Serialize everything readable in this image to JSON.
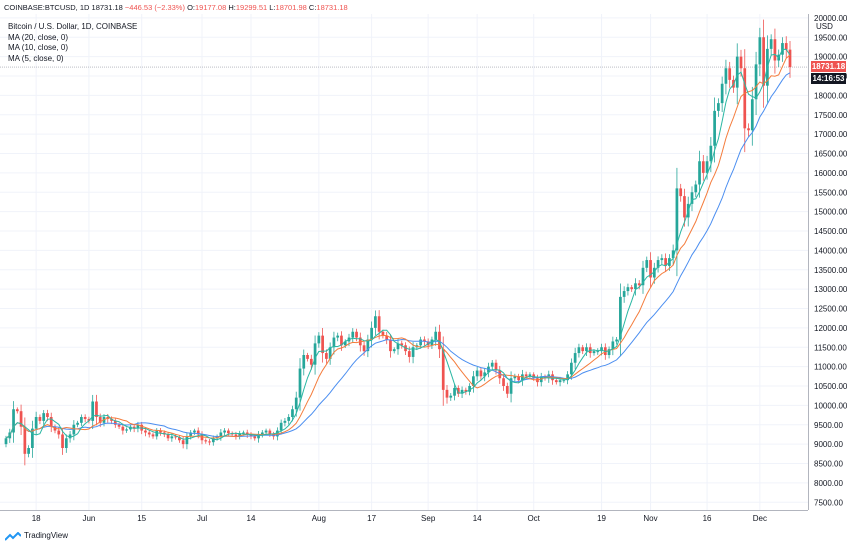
{
  "header": {
    "symbol": "COINBASE:BTCUSD, 1D",
    "price": "18731.18",
    "change": "−446.53 (−2.33%)",
    "o_label": "O:",
    "o_value": "19177.08",
    "h_label": "H:",
    "h_value": "19299.51",
    "l_label": "L:",
    "l_value": "18701.98",
    "c_label": "C:",
    "c_value": "18731.18"
  },
  "legend": {
    "title": "Bitcoin / U.S. Dollar, 1D, COINBASE",
    "ma20": "MA (20, close, 0)",
    "ma10": "MA (10, close, 0)",
    "ma5": "MA (5, close, 0)"
  },
  "tags": {
    "last_price": "18731.18",
    "countdown": "14:16:53"
  },
  "axis": {
    "currency": "USD",
    "top_partial": "20000.00"
  },
  "footer": {
    "brand": "TradingView"
  },
  "colors": {
    "up": "#26a69a",
    "down": "#ef5350",
    "ma20": "#4b8ef0",
    "ma10": "#f47c3c",
    "ma5": "#2ab7a3"
  },
  "chart_data": {
    "type": "candlestick",
    "ylim": [
      7300,
      20100
    ],
    "y_ticks": [
      7500,
      8000,
      8500,
      9000,
      9500,
      10000,
      10500,
      11000,
      11500,
      12000,
      12500,
      13000,
      13500,
      14000,
      14500,
      15000,
      15500,
      16000,
      16500,
      17000,
      17500,
      18000,
      18500,
      19000,
      19500,
      20000
    ],
    "x_ticks": [
      {
        "label": "18",
        "index": 8
      },
      {
        "label": "Jun",
        "index": 22
      },
      {
        "label": "15",
        "index": 36
      },
      {
        "label": "Jul",
        "index": 52
      },
      {
        "label": "14",
        "index": 65
      },
      {
        "label": "Aug",
        "index": 83
      },
      {
        "label": "17",
        "index": 97
      },
      {
        "label": "Sep",
        "index": 112
      },
      {
        "label": "14",
        "index": 125
      },
      {
        "label": "Oct",
        "index": 140
      },
      {
        "label": "19",
        "index": 158
      },
      {
        "label": "Nov",
        "index": 171
      },
      {
        "label": "16",
        "index": 186
      },
      {
        "label": "Dec",
        "index": 200
      }
    ],
    "close": [
      9150,
      9300,
      9900,
      9850,
      9450,
      8750,
      8900,
      9400,
      9700,
      9600,
      9800,
      9700,
      9450,
      9350,
      9250,
      8900,
      9150,
      9250,
      9500,
      9550,
      9700,
      9650,
      9600,
      10100,
      9700,
      9550,
      9700,
      9650,
      9600,
      9500,
      9450,
      9350,
      9380,
      9450,
      9400,
      9500,
      9350,
      9300,
      9250,
      9200,
      9350,
      9300,
      9250,
      9150,
      9200,
      9180,
      9100,
      9000,
      9200,
      9300,
      9350,
      9250,
      9100,
      9070,
      9050,
      9150,
      9200,
      9300,
      9350,
      9280,
      9250,
      9200,
      9280,
      9300,
      9250,
      9200,
      9150,
      9250,
      9300,
      9350,
      9250,
      9200,
      9350,
      9550,
      9600,
      9700,
      9900,
      10200,
      10950,
      11300,
      11200,
      11050,
      11600,
      11800,
      11350,
      11200,
      11500,
      11750,
      11800,
      11550,
      11650,
      11750,
      11900,
      11750,
      11550,
      11400,
      11700,
      12000,
      12300,
      11900,
      11800,
      11700,
      11400,
      11450,
      11600,
      11550,
      11400,
      11250,
      11500,
      11550,
      11700,
      11650,
      11550,
      11700,
      11900,
      11450,
      10400,
      10200,
      10250,
      10450,
      10300,
      10400,
      10350,
      10500,
      10750,
      10900,
      10750,
      10850,
      11000,
      11100,
      10900,
      10700,
      10500,
      10300,
      10700,
      10750,
      10650,
      10800,
      10750,
      10800,
      10700,
      10600,
      10750,
      10700,
      10800,
      10650,
      10600,
      10650,
      10650,
      10800,
      11100,
      11350,
      11500,
      11400,
      11500,
      11350,
      11400,
      11400,
      11500,
      11300,
      11450,
      11650,
      11700,
      12800,
      12950,
      13050,
      13000,
      13150,
      13100,
      13550,
      13750,
      13300,
      13550,
      13750,
      13800,
      13600,
      13800,
      14000,
      15600,
      15400,
      14850,
      15200,
      15500,
      15700,
      16300,
      16000,
      16300,
      16700,
      17600,
      17800,
      18300,
      18700,
      18400,
      18200,
      19000,
      18700,
      17150,
      17100,
      17900,
      18800,
      19500,
      18250,
      19200,
      19450,
      18900,
      19050,
      19350,
      19180,
      18731
    ]
  }
}
